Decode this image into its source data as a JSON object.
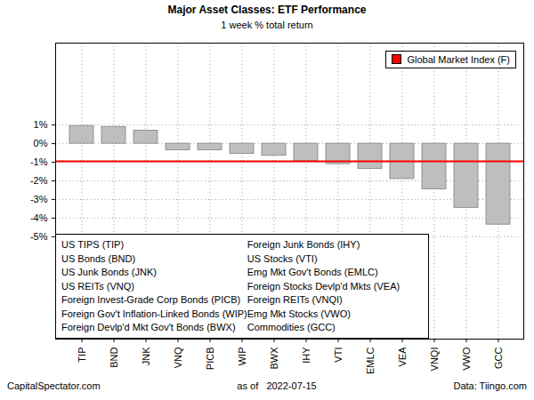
{
  "chart_data": {
    "type": "bar",
    "title": "Major Asset Classes: ETF Performance",
    "subtitle": "1 week % total return",
    "categories": [
      "TIP",
      "BND",
      "JNK",
      "VNQ",
      "PICB",
      "WIP",
      "BWX",
      "IHY",
      "VTI",
      "EMLC",
      "VEA",
      "VNQI",
      "VWO",
      "GCC"
    ],
    "values": [
      0.95,
      0.9,
      0.7,
      -0.35,
      -0.35,
      -0.55,
      -0.65,
      -0.95,
      -1.1,
      -1.35,
      -1.9,
      -2.45,
      -3.45,
      -4.35
    ],
    "color": "#bebebe",
    "ylim": [
      -10.5,
      5.4
    ],
    "yticks": [
      {
        "value": 1,
        "label": "1%"
      },
      {
        "value": 0,
        "label": "0%"
      },
      {
        "value": -1,
        "label": "-1%"
      },
      {
        "value": -2,
        "label": "-2%"
      },
      {
        "value": -3,
        "label": "-3%"
      },
      {
        "value": -4,
        "label": "-4%"
      },
      {
        "value": -5,
        "label": "-5%"
      }
    ],
    "grid": true,
    "reference_line": {
      "name": "Global Market Index (F)",
      "value": -0.95,
      "color": "#ff0000"
    },
    "legend": "top-right",
    "key": [
      "US TIPS (TIP)",
      "US Bonds (BND)",
      "US Junk Bonds (JNK)",
      "US REITs (VNQ)",
      "Foreign Invest-Grade Corp Bonds (PICB)",
      "Foreign Gov't Inflation-Linked Bonds (WIP)",
      "Foreign Devlp'd Mkt Gov't Bonds (BWX)",
      "Foreign Junk Bonds (IHY)",
      "US Stocks (VTI)",
      "Emg Mkt Gov't Bonds (EMLC)",
      "Foreign Stocks Devlp'd Mkts (VEA)",
      "Foreign REITs (VNQI)",
      "Emg Mkt Stocks (VWO)",
      "Commodities (GCC)"
    ],
    "footer": [
      "CapitalSpectator.com",
      "as of   2022-07-15",
      "Data: Tiingo.com"
    ]
  }
}
